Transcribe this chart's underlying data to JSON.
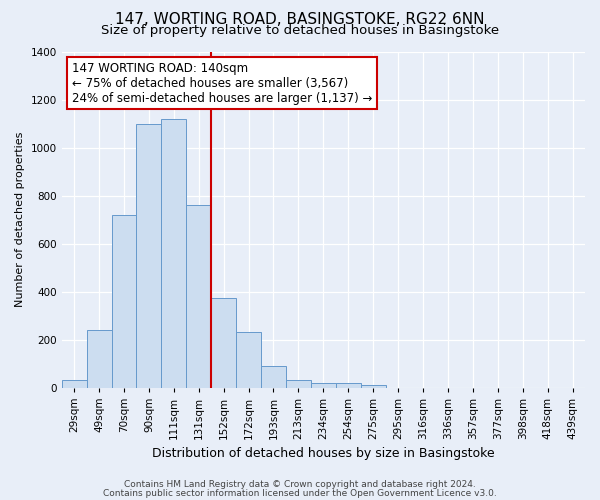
{
  "title": "147, WORTING ROAD, BASINGSTOKE, RG22 6NN",
  "subtitle": "Size of property relative to detached houses in Basingstoke",
  "xlabel": "Distribution of detached houses by size in Basingstoke",
  "ylabel": "Number of detached properties",
  "bar_labels": [
    "29sqm",
    "49sqm",
    "70sqm",
    "90sqm",
    "111sqm",
    "131sqm",
    "152sqm",
    "172sqm",
    "193sqm",
    "213sqm",
    "234sqm",
    "254sqm",
    "275sqm",
    "295sqm",
    "316sqm",
    "336sqm",
    "357sqm",
    "377sqm",
    "398sqm",
    "418sqm",
    "439sqm"
  ],
  "bar_values": [
    30,
    240,
    720,
    1100,
    1120,
    760,
    375,
    230,
    90,
    30,
    20,
    20,
    10,
    0,
    0,
    0,
    0,
    0,
    0,
    0,
    0
  ],
  "bar_color": "#ccddf0",
  "bar_edge_color": "#6699cc",
  "vline_x": 5.5,
  "vline_color": "#cc0000",
  "annotation_line1": "147 WORTING ROAD: 140sqm",
  "annotation_line2": "← 75% of detached houses are smaller (3,567)",
  "annotation_line3": "24% of semi-detached houses are larger (1,137) →",
  "annotation_box_color": "white",
  "annotation_box_edge_color": "#cc0000",
  "ylim": [
    0,
    1400
  ],
  "yticks": [
    0,
    200,
    400,
    600,
    800,
    1000,
    1200,
    1400
  ],
  "footnote1": "Contains HM Land Registry data © Crown copyright and database right 2024.",
  "footnote2": "Contains public sector information licensed under the Open Government Licence v3.0.",
  "title_fontsize": 11,
  "subtitle_fontsize": 9.5,
  "xlabel_fontsize": 9,
  "ylabel_fontsize": 8,
  "tick_fontsize": 7.5,
  "annotation_fontsize": 8.5,
  "footnote_fontsize": 6.5,
  "background_color": "#e8eef8"
}
